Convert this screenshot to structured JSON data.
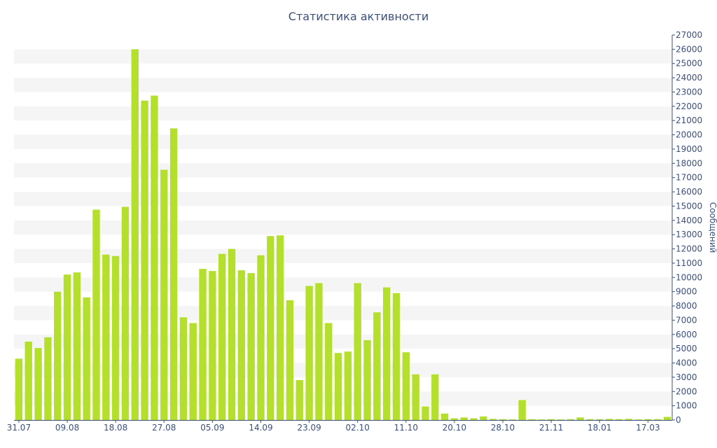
{
  "chart_data": {
    "type": "bar",
    "title": "Статистика активности",
    "xlabel": "",
    "ylabel": "Сообщений",
    "y_axis_side": "right",
    "ylim": [
      0,
      27000
    ],
    "ytick_step": 1000,
    "grid": "alternating horizontal bands",
    "x_tick_labels": [
      "31.07",
      "09.08",
      "18.08",
      "27.08",
      "05.09",
      "14.09",
      "23.09",
      "02.10",
      "11.10",
      "20.10",
      "28.10",
      "21.11",
      "18.01",
      "17.03"
    ],
    "x_tick_bar_index": [
      0,
      5,
      10,
      15,
      20,
      25,
      30,
      35,
      40,
      45,
      50,
      55,
      60,
      65
    ],
    "values": [
      4300,
      5500,
      5050,
      5800,
      9000,
      10200,
      10350,
      8600,
      14750,
      11600,
      11500,
      14950,
      26000,
      22400,
      22750,
      17550,
      20450,
      7200,
      6800,
      10600,
      10450,
      11650,
      12000,
      10500,
      10300,
      11550,
      12900,
      12950,
      8400,
      2800,
      9400,
      9600,
      6800,
      4700,
      4800,
      9600,
      5600,
      7550,
      9300,
      8900,
      4750,
      3200,
      950,
      3200,
      450,
      120,
      180,
      120,
      250,
      80,
      60,
      40,
      1400,
      60,
      40,
      60,
      40,
      60,
      180,
      60,
      60,
      80,
      60,
      80,
      40,
      60,
      60,
      220
    ]
  },
  "colors": {
    "bar": "#b5df2d",
    "band": "#f5f5f5",
    "text": "#3b4f7c",
    "axis": "#3b4f7c"
  }
}
